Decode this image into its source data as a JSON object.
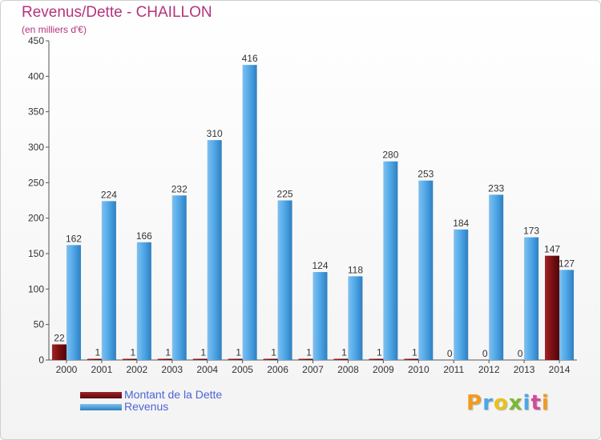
{
  "title": "Revenus/Dette - CHAILLON",
  "subtitle": "(en milliers d'€)",
  "logo": "Proxiti",
  "chart_data": {
    "type": "bar",
    "categories": [
      "2000",
      "2001",
      "2002",
      "2003",
      "2004",
      "2005",
      "2006",
      "2007",
      "2008",
      "2009",
      "2010",
      "2011",
      "2012",
      "2013",
      "2014"
    ],
    "series": [
      {
        "name": "Montant de la Dette",
        "color": "#7a0f12",
        "values": [
          22,
          1,
          1,
          1,
          1,
          1,
          1,
          1,
          1,
          1,
          1,
          0,
          0,
          0,
          147
        ]
      },
      {
        "name": "Revenus",
        "color": "#4ea6e6",
        "values": [
          162,
          224,
          166,
          232,
          310,
          416,
          225,
          124,
          118,
          280,
          253,
          184,
          233,
          173,
          127
        ]
      }
    ],
    "ylim": [
      0,
      450
    ],
    "yticks": [
      0,
      50,
      100,
      150,
      200,
      250,
      300,
      350,
      400,
      450
    ],
    "grid": false,
    "legend": "bottom-left"
  }
}
